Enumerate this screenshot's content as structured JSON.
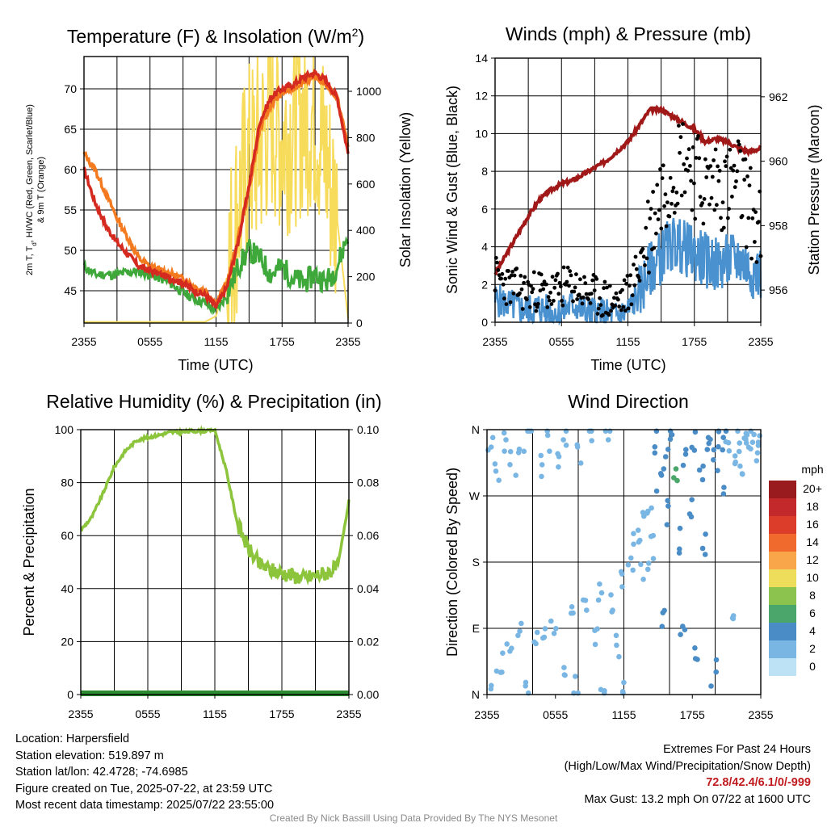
{
  "colors": {
    "temp": "#d42a20",
    "dewpoint": "#3fa83a",
    "t9m": "#f47a20",
    "insolation": "#f7dc5c",
    "wind": "#4a91cf",
    "gust": "#000000",
    "pressure": "#a01818",
    "rh": "#8cc43c",
    "precip": "#2c8a30",
    "extremes": "#c01c20"
  },
  "panels": {
    "temperature": {
      "title_main": "Temperature (F) & Insolation (W/m",
      "title_sup": "2",
      "title_end": ")",
      "ylabel_line1": "2m T, T",
      "ylabel_sub": "d",
      "ylabel_line1b": ", HI/WC (Red, Green, Scarlet/Blue)",
      "ylabel_line2": "& 9m T (Orange)",
      "y2label": "Solar Insolation (Yellow)",
      "xlabel": "Time (UTC)",
      "yticks": [
        "45",
        "50",
        "55",
        "60",
        "65",
        "70"
      ],
      "y2ticks": [
        "0",
        "200",
        "400",
        "600",
        "800",
        "1000"
      ]
    },
    "winds": {
      "title": "Winds (mph) & Pressure (mb)",
      "ylabel": "Sonic Wind & Gust (Blue, Black)",
      "y2label": "Station Pressure (Maroon)",
      "xlabel": "Time (UTC)",
      "yticks": [
        "0",
        "2",
        "4",
        "6",
        "8",
        "10",
        "12",
        "14"
      ],
      "y2ticks": [
        "956",
        "958",
        "960",
        "962"
      ]
    },
    "humidity": {
      "title": "Relative Humidity (%) & Precipitation (in)",
      "ylabel": "Percent & Precipitation",
      "yticks": [
        "0",
        "20",
        "40",
        "60",
        "80",
        "100"
      ],
      "y2ticks": [
        "0.00",
        "0.02",
        "0.04",
        "0.06",
        "0.08",
        "0.10"
      ]
    },
    "direction": {
      "title": "Wind Direction",
      "ylabel": "Direction (Colored By Speed)",
      "yticks": [
        "N",
        "E",
        "S",
        "W",
        "N"
      ],
      "legend_title": "mph",
      "legend_labels": [
        "20+",
        "18",
        "16",
        "14",
        "12",
        "10",
        "8",
        "6",
        "4",
        "2",
        "0"
      ],
      "legend_colors": [
        "#9a1b1e",
        "#c3282b",
        "#dc3c2a",
        "#f06a2e",
        "#f9a54a",
        "#eedc5b",
        "#8cc34e",
        "#4aa66a",
        "#4a8cc6",
        "#7ab6e4",
        "#bde2f6"
      ]
    }
  },
  "xticks": [
    "2355",
    "0555",
    "1155",
    "1755",
    "2355"
  ],
  "info": {
    "location": "Location: Harpersfield",
    "elevation": "Station elevation: 519.897 m",
    "latlon": "Station lat/lon: 42.4728; -74.6985",
    "created": "Figure created on Tue, 2025-07-22, at 23:59 UTC",
    "recent": "Most recent data timestamp: 2025/07/22 23:55:00"
  },
  "extremes": {
    "title": "Extremes For Past 24 Hours",
    "subtitle": "(High/Low/Max Wind/Precipitation/Snow Depth)",
    "values": "72.8/42.4/6.1/0/-999",
    "gust": "Max Gust: 13.2 mph On 07/22 at 1600 UTC"
  },
  "credit": "Created By Nick Bassill Using Data Provided By The NYS Mesonet",
  "chart_data": [
    {
      "type": "line",
      "title": "Temperature (F) & Insolation (W/m2)",
      "xlabel": "Time (UTC)",
      "ylabel": "2m T, Td, HI/WC (Red, Green, Scarlet/Blue) & 9m T (Orange)",
      "y2label": "Solar Insolation (Yellow)",
      "ylim": [
        41,
        74
      ],
      "y2lim": [
        0,
        1150
      ],
      "xlim": [
        0,
        24
      ],
      "x": [
        0,
        1,
        2,
        3,
        4,
        5,
        6,
        7,
        8,
        9,
        10,
        11,
        12,
        13,
        14,
        15,
        16,
        17,
        18,
        19,
        20,
        21,
        22,
        23,
        24
      ],
      "series": [
        {
          "name": "2m T",
          "axis": "left",
          "values": [
            60,
            56,
            53,
            51,
            49.5,
            48,
            47.5,
            47,
            46.5,
            46,
            45,
            44.5,
            43,
            45.5,
            51,
            58,
            66,
            69,
            70,
            70.5,
            71.5,
            72,
            71,
            69,
            62
          ]
        },
        {
          "name": "9m T",
          "axis": "left",
          "values": [
            62,
            60,
            57,
            54,
            51.5,
            49,
            48,
            47.5,
            47,
            46.5,
            45.5,
            45,
            43.5,
            46,
            51.5,
            57.5,
            65,
            68,
            69.5,
            70,
            71,
            71.5,
            70.5,
            69,
            63
          ]
        },
        {
          "name": "Td",
          "axis": "left",
          "values": [
            48,
            47,
            47,
            47,
            47.3,
            47.4,
            47,
            46.5,
            45.8,
            44.8,
            44,
            43.5,
            42.5,
            44.5,
            48,
            50,
            49,
            47,
            48,
            46.5,
            46,
            47,
            46,
            48,
            52
          ]
        },
        {
          "name": "Solar Insolation",
          "axis": "right",
          "values": [
            5,
            5,
            5,
            5,
            5,
            5,
            5,
            5,
            5,
            5,
            5,
            5,
            30,
            200,
            500,
            700,
            750,
            900,
            800,
            850,
            900,
            900,
            700,
            450,
            20
          ]
        }
      ]
    },
    {
      "type": "line",
      "title": "Winds (mph) & Pressure (mb)",
      "xlabel": "Time (UTC)",
      "ylabel": "Sonic Wind & Gust (Blue, Black)",
      "y2label": "Station Pressure (Maroon)",
      "ylim": [
        0,
        14
      ],
      "y2lim": [
        955,
        963.2
      ],
      "xlim": [
        0,
        24
      ],
      "x": [
        0,
        1,
        2,
        3,
        4,
        5,
        6,
        7,
        8,
        9,
        10,
        11,
        12,
        13,
        14,
        15,
        16,
        17,
        18,
        19,
        20,
        21,
        22,
        23,
        24
      ],
      "series": [
        {
          "name": "Station Pressure",
          "axis": "right",
          "values": [
            956.5,
            957.1,
            957.7,
            958.3,
            958.8,
            959.1,
            959.3,
            959.4,
            959.6,
            959.8,
            960.0,
            960.3,
            960.6,
            961.1,
            961.6,
            961.6,
            961.4,
            961.2,
            961.0,
            960.6,
            960.7,
            960.6,
            960.4,
            960.3,
            960.4
          ]
        },
        {
          "name": "Sonic Wind",
          "axis": "left",
          "values": [
            1.2,
            1.0,
            0.8,
            0.6,
            0.8,
            0.5,
            0.5,
            1.0,
            0.6,
            0.5,
            0.4,
            0.3,
            0.6,
            1.5,
            2.8,
            3.5,
            4.2,
            4.0,
            3.6,
            3.3,
            3.0,
            3.2,
            3.4,
            2.8,
            2.6
          ]
        },
        {
          "name": "Gust",
          "axis": "left",
          "values": [
            2.5,
            2.0,
            1.8,
            1.6,
            1.7,
            1.5,
            1.8,
            2.0,
            1.6,
            1.4,
            1.2,
            1.0,
            1.5,
            3.0,
            5.0,
            7.0,
            8.0,
            9.0,
            8.0,
            7.0,
            7.5,
            7.0,
            7.5,
            6.0,
            4.5
          ]
        }
      ]
    },
    {
      "type": "line",
      "title": "Relative Humidity (%) & Precipitation (in)",
      "ylabel": "Percent & Precipitation",
      "ylim": [
        0,
        100
      ],
      "y2lim": [
        0,
        0.1
      ],
      "xlim": [
        0,
        24
      ],
      "x": [
        0,
        1,
        2,
        3,
        4,
        5,
        6,
        7,
        8,
        9,
        10,
        11,
        12,
        13,
        14,
        15,
        16,
        17,
        18,
        19,
        20,
        21,
        22,
        23,
        24
      ],
      "series": [
        {
          "name": "Relative Humidity",
          "axis": "left",
          "values": [
            62,
            67,
            76,
            86,
            92,
            96,
            97,
            98,
            99,
            99,
            99.5,
            99.5,
            100,
            85,
            65,
            55,
            49,
            47,
            46,
            45,
            44,
            45,
            46,
            48,
            73
          ]
        },
        {
          "name": "Precipitation",
          "axis": "right",
          "values": [
            0,
            0,
            0,
            0,
            0,
            0,
            0,
            0,
            0,
            0,
            0,
            0,
            0,
            0,
            0,
            0,
            0,
            0,
            0,
            0,
            0,
            0,
            0,
            0,
            0
          ]
        }
      ]
    },
    {
      "type": "scatter",
      "title": "Wind Direction",
      "ylabel": "Direction (Colored By Speed)",
      "xlim": [
        0,
        24
      ],
      "ylim": [
        0,
        360
      ],
      "points": [
        [
          0.3,
          330,
          1
        ],
        [
          0.6,
          20,
          1
        ],
        [
          0.9,
          300,
          1
        ],
        [
          1.2,
          40,
          1
        ],
        [
          1.6,
          345,
          1
        ],
        [
          2.0,
          60,
          1
        ],
        [
          2.3,
          315,
          1
        ],
        [
          2.7,
          90,
          2
        ],
        [
          3.0,
          330,
          1
        ],
        [
          3.4,
          15,
          1
        ],
        [
          3.8,
          355,
          2
        ],
        [
          4.2,
          80,
          1
        ],
        [
          4.6,
          310,
          1
        ],
        [
          5.0,
          70,
          2
        ],
        [
          5.4,
          350,
          1
        ],
        [
          5.8,
          100,
          1
        ],
        [
          6.2,
          320,
          1
        ],
        [
          6.6,
          30,
          1
        ],
        [
          7.0,
          345,
          1
        ],
        [
          7.4,
          115,
          1
        ],
        [
          7.8,
          10,
          1
        ],
        [
          8.2,
          330,
          1
        ],
        [
          8.6,
          130,
          1
        ],
        [
          9.0,
          355,
          1
        ],
        [
          9.4,
          75,
          1
        ],
        [
          9.8,
          140,
          2
        ],
        [
          10.2,
          5,
          1
        ],
        [
          10.6,
          350,
          1
        ],
        [
          11.0,
          120,
          1
        ],
        [
          11.4,
          70,
          1
        ],
        [
          11.8,
          150,
          1
        ],
        [
          12.2,
          5,
          1
        ],
        [
          12.6,
          170,
          1
        ],
        [
          13.0,
          210,
          2
        ],
        [
          13.3,
          190,
          2
        ],
        [
          13.6,
          230,
          2
        ],
        [
          13.9,
          170,
          2
        ],
        [
          14.2,
          250,
          2
        ],
        [
          14.5,
          200,
          2
        ],
        [
          14.8,
          340,
          4
        ],
        [
          15.1,
          290,
          4
        ],
        [
          15.4,
          100,
          4
        ],
        [
          15.7,
          320,
          3
        ],
        [
          16.0,
          250,
          4
        ],
        [
          16.3,
          350,
          4
        ],
        [
          16.6,
          300,
          6
        ],
        [
          16.9,
          210,
          3
        ],
        [
          17.2,
          90,
          4
        ],
        [
          17.5,
          320,
          3
        ],
        [
          17.8,
          250,
          3
        ],
        [
          18.1,
          340,
          4
        ],
        [
          18.4,
          60,
          3
        ],
        [
          18.7,
          300,
          3
        ],
        [
          19.0,
          200,
          4
        ],
        [
          19.3,
          350,
          4
        ],
        [
          19.6,
          330,
          3
        ],
        [
          19.9,
          30,
          3
        ],
        [
          20.2,
          350,
          4
        ],
        [
          20.5,
          290,
          3
        ],
        [
          20.8,
          340,
          4
        ],
        [
          21.1,
          330,
          2
        ],
        [
          21.4,
          90,
          2
        ],
        [
          21.7,
          320,
          2
        ],
        [
          22.0,
          345,
          2
        ],
        [
          22.3,
          300,
          2
        ],
        [
          22.6,
          340,
          2
        ],
        [
          22.9,
          330,
          2
        ],
        [
          23.2,
          350,
          2
        ],
        [
          23.5,
          325,
          2
        ],
        [
          23.8,
          345,
          2
        ]
      ]
    }
  ]
}
